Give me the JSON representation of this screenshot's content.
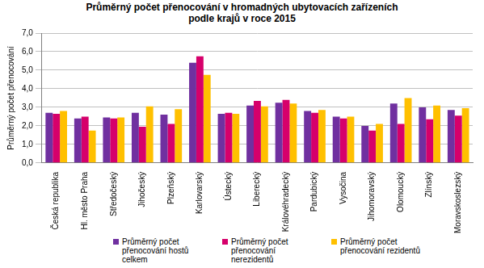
{
  "chart_data": {
    "type": "bar",
    "title": "Průměrný počet přenocování v hromadných ubytovacích zařízeních podle krajů v roce 2015",
    "y_label": "Průměrný počet přenocování",
    "categories": [
      "Česká republika",
      "Hl. město Praha",
      "Středočeský",
      "Jihočeský",
      "Plzeňský",
      "Karlovarský",
      "Ústecký",
      "Liberecký",
      "Královéhradecký",
      "Pardubický",
      "Vysočina",
      "Jihomoravský",
      "Olomoucký",
      "Zlínský",
      "Moravskoslezský"
    ],
    "series": [
      {
        "name": "Průměrný počet přenocování hostů celkem",
        "color": "#7030a0",
        "values": [
          2.7,
          2.4,
          2.45,
          2.7,
          2.6,
          5.4,
          2.65,
          3.1,
          3.25,
          2.8,
          2.5,
          2.0,
          3.2,
          3.0,
          2.85
        ]
      },
      {
        "name": "Průměrný počet přenocování nerezidentů",
        "color": "#d6006b",
        "values": [
          2.65,
          2.5,
          2.4,
          1.95,
          2.1,
          5.75,
          2.7,
          3.35,
          3.4,
          2.7,
          2.4,
          1.75,
          2.1,
          2.35,
          2.55
        ]
      },
      {
        "name": "Průměrný počet přenocování rezidentů",
        "color": "#ffc000",
        "values": [
          2.8,
          1.75,
          2.45,
          3.05,
          2.9,
          4.75,
          2.65,
          3.05,
          3.2,
          2.85,
          2.5,
          2.1,
          3.5,
          3.1,
          2.95
        ]
      }
    ],
    "ylim": [
      0,
      7
    ],
    "yticks": [
      {
        "value": 0,
        "label": "0,0"
      },
      {
        "value": 1,
        "label": "1,0"
      },
      {
        "value": 2,
        "label": "2,0"
      },
      {
        "value": 3,
        "label": "3,0"
      },
      {
        "value": 4,
        "label": "4,0"
      },
      {
        "value": 5,
        "label": "5,0"
      },
      {
        "value": 6,
        "label": "6,0"
      },
      {
        "value": 7,
        "label": "7,0"
      }
    ],
    "grid": true,
    "legend": "bottom"
  }
}
